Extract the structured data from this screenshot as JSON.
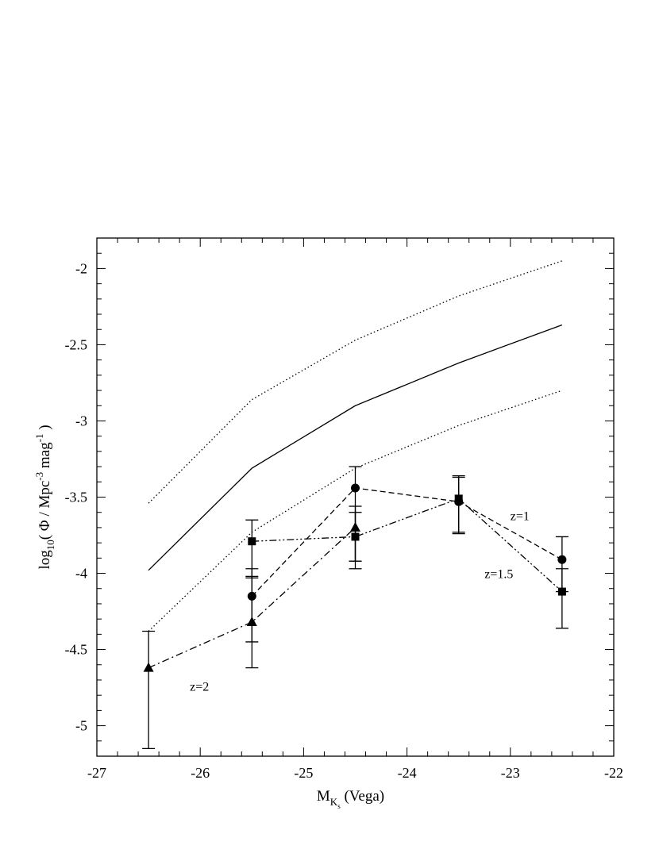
{
  "chart_data": {
    "type": "line",
    "xlabel": {
      "main": "M",
      "sub": "K",
      "subsub": "s",
      "rest": " (Vega)"
    },
    "ylabel": {
      "pre": "log",
      "sub": "10",
      "mid1": "( Φ / Mpc",
      "sup1": "-3",
      "mid2": " mag",
      "sup2": "-1",
      "post": " )"
    },
    "xlim": [
      -27,
      -22
    ],
    "ylim": [
      -5.2,
      -1.8
    ],
    "xticks": [
      -27,
      -26,
      -25,
      -24,
      -23,
      -22
    ],
    "xtick_labels": [
      "-27",
      "-26",
      "-25",
      "-24",
      "-23",
      "-22"
    ],
    "yticks": [
      -5,
      -4.5,
      -4,
      -3.5,
      -3,
      -2.5,
      -2
    ],
    "ytick_labels": [
      "-5",
      "-4.5",
      "-4",
      "-3.5",
      "-3",
      "-2.5",
      "-2"
    ],
    "grid": false,
    "series": [
      {
        "style": "solid",
        "marker": "none",
        "x": [
          -26.5,
          -25.5,
          -24.5,
          -23.5,
          -22.5
        ],
        "y": [
          -3.98,
          -3.31,
          -2.9,
          -2.62,
          -2.37
        ]
      },
      {
        "style": "dotted",
        "marker": "none",
        "x": [
          -26.5,
          -25.5,
          -24.5,
          -23.5,
          -22.5
        ],
        "y": [
          -3.54,
          -2.86,
          -2.47,
          -2.18,
          -1.95
        ]
      },
      {
        "style": "dotted",
        "marker": "none",
        "x": [
          -26.5,
          -25.5,
          -24.5,
          -23.5,
          -22.5
        ],
        "y": [
          -4.38,
          -3.73,
          -3.31,
          -3.03,
          -2.8
        ]
      },
      {
        "label": "z=1",
        "style": "dashed",
        "marker": "circle",
        "x": [
          -25.5,
          -24.5,
          -23.5,
          -22.5
        ],
        "y": [
          -4.15,
          -3.44,
          -3.53,
          -3.91
        ],
        "yerr_low": [
          -4.45,
          -3.92,
          -3.73,
          -4.12
        ],
        "yerr_high": [
          -3.97,
          -3.3,
          -3.36,
          -3.76
        ]
      },
      {
        "label": "z=1.5",
        "style": "dashdotdot",
        "marker": "square",
        "x": [
          -25.5,
          -24.5,
          -23.5,
          -22.5
        ],
        "y": [
          -3.79,
          -3.76,
          -3.51,
          -4.12
        ],
        "yerr_low": [
          -4.03,
          -3.97,
          -3.74,
          -4.36
        ],
        "yerr_high": [
          -3.65,
          -3.6,
          -3.37,
          -3.97
        ]
      },
      {
        "label": "z=2",
        "style": "dashdot",
        "marker": "triangle",
        "x": [
          -26.5,
          -25.5,
          -24.5
        ],
        "y": [
          -4.62,
          -4.32,
          -3.7
        ],
        "yerr_low": [
          -5.15,
          -4.62,
          -3.92
        ],
        "yerr_high": [
          -4.38,
          -4.02,
          -3.56
        ]
      }
    ],
    "annotations": [
      {
        "text": "z=1",
        "x": -23.0,
        "y": -3.65
      },
      {
        "text": "z=1.5",
        "x": -23.25,
        "y": -4.03
      },
      {
        "text": "z=2",
        "x": -26.1,
        "y": -4.77
      }
    ]
  }
}
